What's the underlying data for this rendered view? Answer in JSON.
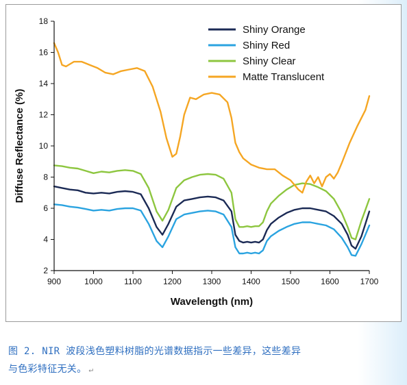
{
  "caption": {
    "line1": "图 2. NIR 波段浅色塑料树脂的光谱数据指示一些差异，这些差异",
    "line2": "与色彩特征无关。",
    "return_mark": "↵"
  },
  "chart_data": {
    "type": "line",
    "title": "",
    "xlabel": "Wavelength (nm)",
    "ylabel": "Diffuse Reflectance (%)",
    "xlim": [
      900,
      1700
    ],
    "ylim": [
      2,
      18
    ],
    "xticks": [
      900,
      1000,
      1100,
      1200,
      1300,
      1400,
      1500,
      1600,
      1700
    ],
    "yticks": [
      2,
      4,
      6,
      8,
      10,
      12,
      14,
      16,
      18
    ],
    "legend_position": "top-right",
    "grid": false,
    "series": [
      {
        "name": "Shiny Orange",
        "color": "#1b2a55",
        "x": [
          900,
          920,
          940,
          960,
          980,
          1000,
          1020,
          1040,
          1060,
          1080,
          1100,
          1120,
          1140,
          1160,
          1175,
          1190,
          1210,
          1230,
          1250,
          1270,
          1290,
          1310,
          1330,
          1350,
          1360,
          1370,
          1380,
          1390,
          1400,
          1410,
          1420,
          1430,
          1440,
          1450,
          1470,
          1490,
          1510,
          1530,
          1550,
          1570,
          1590,
          1610,
          1630,
          1645,
          1655,
          1665,
          1680,
          1690,
          1700
        ],
        "y": [
          7.4,
          7.3,
          7.2,
          7.15,
          7.0,
          6.95,
          7.0,
          6.95,
          7.05,
          7.1,
          7.05,
          6.9,
          6.0,
          4.8,
          4.3,
          5.0,
          6.1,
          6.5,
          6.6,
          6.7,
          6.75,
          6.7,
          6.5,
          5.8,
          4.3,
          3.9,
          3.8,
          3.85,
          3.8,
          3.85,
          3.8,
          4.0,
          4.6,
          5.0,
          5.4,
          5.7,
          5.9,
          6.0,
          6.0,
          5.9,
          5.8,
          5.5,
          5.0,
          4.3,
          3.6,
          3.4,
          4.2,
          5.0,
          5.8
        ]
      },
      {
        "name": "Shiny Red",
        "color": "#2aa3e0",
        "x": [
          900,
          920,
          940,
          960,
          980,
          1000,
          1020,
          1040,
          1060,
          1080,
          1100,
          1120,
          1140,
          1160,
          1175,
          1190,
          1210,
          1230,
          1250,
          1270,
          1290,
          1310,
          1330,
          1350,
          1360,
          1370,
          1380,
          1390,
          1400,
          1410,
          1420,
          1430,
          1440,
          1450,
          1470,
          1490,
          1510,
          1530,
          1550,
          1570,
          1590,
          1610,
          1630,
          1645,
          1655,
          1665,
          1680,
          1690,
          1700
        ],
        "y": [
          6.25,
          6.2,
          6.1,
          6.05,
          5.95,
          5.85,
          5.9,
          5.85,
          5.95,
          6.0,
          6.0,
          5.85,
          5.0,
          3.9,
          3.5,
          4.2,
          5.3,
          5.6,
          5.7,
          5.8,
          5.85,
          5.8,
          5.6,
          4.8,
          3.5,
          3.1,
          3.1,
          3.15,
          3.1,
          3.15,
          3.1,
          3.3,
          3.9,
          4.2,
          4.55,
          4.8,
          5.0,
          5.1,
          5.1,
          5.0,
          4.9,
          4.65,
          4.1,
          3.5,
          3.0,
          2.95,
          3.7,
          4.3,
          4.9
        ]
      },
      {
        "name": "Shiny Clear",
        "color": "#8dc63f",
        "x": [
          900,
          920,
          940,
          960,
          980,
          1000,
          1020,
          1040,
          1060,
          1080,
          1100,
          1120,
          1140,
          1160,
          1175,
          1190,
          1210,
          1230,
          1250,
          1270,
          1290,
          1310,
          1330,
          1350,
          1360,
          1370,
          1380,
          1390,
          1400,
          1410,
          1420,
          1430,
          1440,
          1450,
          1470,
          1490,
          1510,
          1530,
          1550,
          1570,
          1590,
          1610,
          1630,
          1645,
          1655,
          1665,
          1680,
          1690,
          1700
        ],
        "y": [
          8.75,
          8.7,
          8.6,
          8.55,
          8.4,
          8.25,
          8.35,
          8.3,
          8.4,
          8.45,
          8.4,
          8.2,
          7.3,
          5.8,
          5.2,
          5.9,
          7.3,
          7.8,
          8.0,
          8.15,
          8.2,
          8.15,
          7.9,
          7.0,
          5.3,
          4.8,
          4.8,
          4.85,
          4.8,
          4.85,
          4.85,
          5.1,
          5.8,
          6.3,
          6.8,
          7.2,
          7.5,
          7.6,
          7.55,
          7.35,
          7.1,
          6.6,
          5.7,
          4.8,
          4.1,
          4.0,
          5.2,
          5.9,
          6.6
        ]
      },
      {
        "name": "Matte Translucent",
        "color": "#f5a623",
        "x": [
          900,
          910,
          920,
          930,
          950,
          970,
          990,
          1010,
          1030,
          1050,
          1070,
          1090,
          1110,
          1130,
          1150,
          1170,
          1185,
          1200,
          1210,
          1220,
          1230,
          1245,
          1260,
          1280,
          1300,
          1320,
          1340,
          1350,
          1360,
          1370,
          1380,
          1400,
          1420,
          1440,
          1460,
          1480,
          1500,
          1510,
          1520,
          1530,
          1540,
          1550,
          1560,
          1570,
          1580,
          1590,
          1600,
          1610,
          1620,
          1630,
          1650,
          1670,
          1690,
          1700
        ],
        "y": [
          16.6,
          16.0,
          15.2,
          15.1,
          15.4,
          15.4,
          15.2,
          15.0,
          14.7,
          14.6,
          14.8,
          14.9,
          15.0,
          14.8,
          13.8,
          12.2,
          10.5,
          9.3,
          9.5,
          10.6,
          12.0,
          13.1,
          13.0,
          13.3,
          13.4,
          13.3,
          12.8,
          11.8,
          10.2,
          9.6,
          9.2,
          8.8,
          8.6,
          8.5,
          8.5,
          8.1,
          7.8,
          7.5,
          7.2,
          7.0,
          7.7,
          8.1,
          7.6,
          8.0,
          7.4,
          8.0,
          8.2,
          7.9,
          8.3,
          8.9,
          10.2,
          11.3,
          12.3,
          13.2
        ]
      }
    ]
  }
}
